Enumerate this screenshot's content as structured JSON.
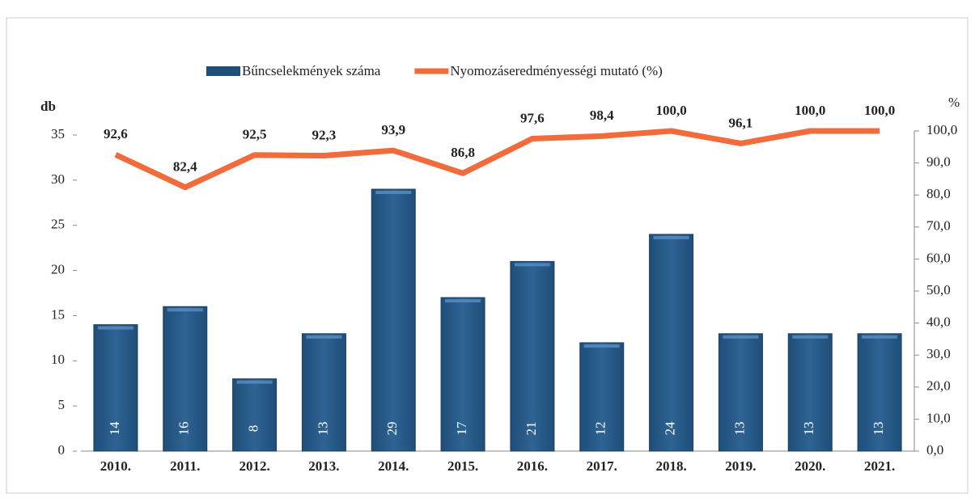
{
  "chart_data": {
    "type": "bar-line",
    "categories": [
      "2010.",
      "2011.",
      "2012.",
      "2013.",
      "2014.",
      "2015.",
      "2016.",
      "2017.",
      "2018.",
      "2019.",
      "2020.",
      "2021."
    ],
    "ylabel": "db",
    "y2label": "%",
    "ylim": [
      0,
      35
    ],
    "yticks": [
      0,
      5,
      10,
      15,
      20,
      25,
      30,
      35
    ],
    "y2lim": [
      0,
      100
    ],
    "y2ticks": [
      {
        "value": 0,
        "label": "0,0"
      },
      {
        "value": 10,
        "label": "10,0"
      },
      {
        "value": 20,
        "label": "20,0"
      },
      {
        "value": 30,
        "label": "30,0"
      },
      {
        "value": 40,
        "label": "40,0"
      },
      {
        "value": 50,
        "label": "50,0"
      },
      {
        "value": 60,
        "label": "60,0"
      },
      {
        "value": 70,
        "label": "70,0"
      },
      {
        "value": 80,
        "label": "80,0"
      },
      {
        "value": 90,
        "label": "90,0"
      },
      {
        "value": 100,
        "label": "100,0"
      }
    ],
    "legend": "top",
    "series": [
      {
        "name": "Bűncselekmények száma",
        "type": "bar",
        "color": "#1f4e79",
        "values": [
          14,
          16,
          8,
          13,
          29,
          17,
          21,
          12,
          24,
          13,
          13,
          13
        ]
      },
      {
        "name": "Nyomozáseredményességi mutató (%)",
        "type": "line",
        "axis": "y2",
        "color": "#f26b3a",
        "values": [
          92.6,
          82.4,
          92.5,
          92.3,
          93.9,
          86.8,
          97.6,
          98.4,
          100.0,
          96.1,
          100.0,
          100.0
        ],
        "value_labels": [
          "92,6",
          "82,4",
          "92,5",
          "92,3",
          "93,9",
          "86,8",
          "97,6",
          "98,4",
          "100,0",
          "96,1",
          "100,0",
          "100,0"
        ]
      }
    ]
  }
}
